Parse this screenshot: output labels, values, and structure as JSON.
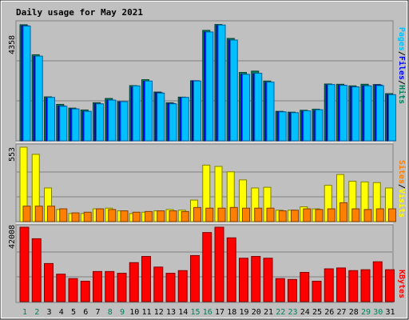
{
  "chart_data": {
    "type": "bar",
    "title": "Daily usage for May 2021",
    "days": [
      "1",
      "2",
      "3",
      "4",
      "5",
      "6",
      "7",
      "8",
      "9",
      "10",
      "11",
      "12",
      "13",
      "14",
      "15",
      "16",
      "17",
      "18",
      "19",
      "20",
      "21",
      "22",
      "23",
      "24",
      "25",
      "26",
      "27",
      "28",
      "29",
      "30",
      "31"
    ],
    "weekend_days": [
      1,
      2,
      8,
      9,
      15,
      16,
      22,
      23,
      29,
      30
    ],
    "colors": {
      "background": "#c0c0c0",
      "frame": "#ffffff",
      "title": "#0000ff",
      "hits": "#00805c",
      "files": "#0000ff",
      "pages": "#00c0ff",
      "visits": "#ffff00",
      "sites": "#ff8000",
      "kbytes": "#ff0000",
      "weekday_label": "#000000",
      "weekend_label": "#00805c"
    },
    "panels": [
      {
        "max_label": "4358",
        "ymax": 4358,
        "legend": [
          "Pages",
          "Files",
          "Hits"
        ],
        "legend_separator": "/",
        "series": [
          {
            "name": "Hits",
            "values": [
              4330,
              3210,
              1640,
              1360,
              1220,
              1150,
              1420,
              1580,
              1460,
              2060,
              2280,
              1820,
              1420,
              1630,
              2240,
              4120,
              4340,
              3820,
              2550,
              2600,
              2230,
              1100,
              1070,
              1140,
              1180,
              2120,
              2110,
              2050,
              2110,
              2100,
              1760
            ]
          },
          {
            "name": "Files",
            "values": [
              4290,
              3150,
              1600,
              1300,
              1190,
              1100,
              1380,
              1520,
              1460,
              2000,
              2220,
              1790,
              1390,
              1600,
              2240,
              4060,
              4300,
              3760,
              2480,
              2500,
              2180,
              1080,
              1040,
              1100,
              1120,
              2080,
              2070,
              2010,
              2050,
              2080,
              1720
            ]
          },
          {
            "name": "Pages",
            "values": [
              4280,
              3160,
              1620,
              1290,
              1190,
              1100,
              1380,
              1520,
              1460,
              2050,
              2230,
              1780,
              1380,
              1620,
              2230,
              4060,
              4320,
              3760,
              2480,
              2520,
              2190,
              1080,
              1050,
              1120,
              1160,
              2100,
              2070,
              2010,
              2050,
              2060,
              1720
            ]
          }
        ]
      },
      {
        "max_label": "553",
        "ymax": 553,
        "legend": [
          "Sites",
          "Visits"
        ],
        "legend_separator": "/",
        "series": [
          {
            "name": "Visits",
            "values": [
              553,
              500,
              250,
              90,
              60,
              60,
              95,
              100,
              80,
              60,
              70,
              80,
              90,
              85,
              160,
              420,
              410,
              370,
              310,
              250,
              255,
              85,
              85,
              110,
              95,
              270,
              350,
              300,
              295,
              290,
              250
            ]
          },
          {
            "name": "Sites",
            "values": [
              115,
              115,
              115,
              95,
              65,
              70,
              95,
              90,
              80,
              70,
              75,
              80,
              80,
              75,
              105,
              100,
              100,
              105,
              100,
              100,
              100,
              80,
              85,
              95,
              90,
              95,
              140,
              95,
              90,
              95,
              95
            ]
          }
        ]
      },
      {
        "max_label": "42008",
        "ymax": 42008,
        "legend": [
          "KBytes"
        ],
        "legend_separator": "",
        "series": [
          {
            "name": "KBytes",
            "values": [
              42008,
              35500,
              21500,
              15500,
              13000,
              11500,
              17000,
              17000,
              16000,
              22000,
              25500,
              19500,
              16000,
              17500,
              26000,
              39000,
              42008,
              36000,
              24500,
              25500,
              24500,
              13000,
              12500,
              16500,
              11500,
              18500,
              19000,
              17500,
              18000,
              22500,
              18000
            ]
          }
        ]
      }
    ]
  }
}
